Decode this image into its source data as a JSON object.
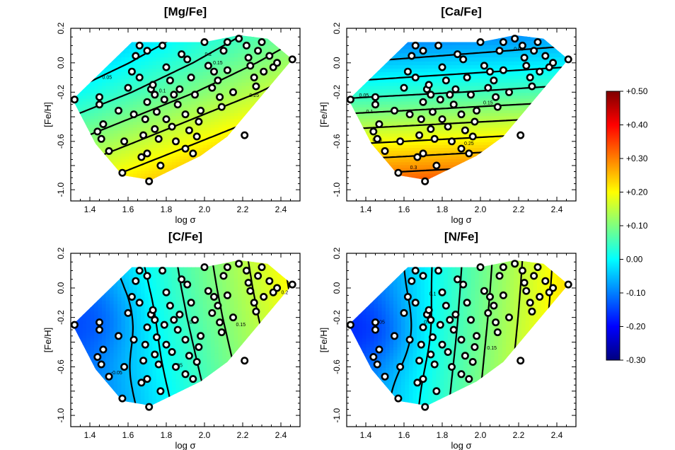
{
  "colorbar": {
    "ticks": [
      "+0.50",
      "+0.40",
      "+0.30",
      "+0.20",
      "+0.10",
      "0.00",
      "-0.10",
      "-0.20",
      "-0.30"
    ],
    "range": [
      -0.3,
      0.5
    ],
    "colors": [
      "#00007f",
      "#0000ff",
      "#007fff",
      "#00ffff",
      "#7fff7f",
      "#ffff00",
      "#ff7f00",
      "#ff0000",
      "#7f0000"
    ]
  },
  "chart_data": [
    {
      "type": "contour",
      "title": "[Mg/Fe]",
      "xlabel": "log σ",
      "ylabel": "[Fe/H]",
      "xlim": [
        1.3,
        2.5
      ],
      "ylim": [
        -1.0,
        0.2
      ],
      "xticks": [
        "1.4",
        "1.6",
        "1.8",
        "2.0",
        "2.2",
        "2.4"
      ],
      "yticks": [
        "0.2",
        "0.0",
        "-0.2",
        "-0.6",
        "-1.0"
      ],
      "ytick_values": [
        0.2,
        0.0,
        -0.2,
        -0.6,
        -1.0
      ],
      "field": {
        "base": 0.14,
        "gx": 0.09,
        "gy": -0.12,
        "cx": 0.0,
        "cy": 0.0,
        "c2": 0.0
      },
      "contour_labels": [
        {
          "text": "0.05",
          "x": 1.49,
          "y": -0.11
        },
        {
          "text": "0.1",
          "x": 1.78,
          "y": -0.2
        },
        {
          "text": "0.15",
          "x": 2.07,
          "y": -0.01
        },
        {
          "text": "0.2",
          "x": 2.02,
          "y": 0.04
        },
        {
          "text": "0.25",
          "x": 2.26,
          "y": -0.24
        }
      ]
    },
    {
      "type": "contour",
      "title": "[Ca/Fe]",
      "xlabel": "log σ",
      "ylabel": "[Fe/H]",
      "xlim": [
        1.3,
        2.5
      ],
      "ylim": [
        -1.0,
        0.2
      ],
      "xticks": [
        "1.4",
        "1.6",
        "1.8",
        "2.0",
        "2.2",
        "2.4"
      ],
      "yticks": [
        "0.2",
        "0.0",
        "-0.2",
        "-0.6",
        "-1.0"
      ],
      "ytick_values": [
        0.2,
        0.0,
        -0.2,
        -0.6,
        -1.0
      ],
      "field": {
        "base": 0.13,
        "gx": 0.02,
        "gy": -0.2,
        "cx": 0.0,
        "cy": 0.0,
        "c2": 0.0
      },
      "contour_labels": [
        {
          "text": "0.05",
          "x": 1.39,
          "y": -0.24
        },
        {
          "text": "0.05",
          "x": 2.2,
          "y": 0.07
        },
        {
          "text": "0.1",
          "x": 1.42,
          "y": -0.37
        },
        {
          "text": "0.15",
          "x": 1.46,
          "y": -0.6
        },
        {
          "text": "0.15",
          "x": 2.04,
          "y": -0.3
        },
        {
          "text": "0.25",
          "x": 1.94,
          "y": -0.63
        },
        {
          "text": "0.3",
          "x": 1.65,
          "y": -0.83
        }
      ]
    },
    {
      "type": "contour",
      "title": "[C/Fe]",
      "xlabel": "log σ",
      "ylabel": "[Fe/H]",
      "xlim": [
        1.3,
        2.5
      ],
      "ylim": [
        -1.0,
        0.2
      ],
      "xticks": [
        "1.4",
        "1.6",
        "1.8",
        "2.0",
        "2.2",
        "2.4"
      ],
      "yticks": [
        "0.2",
        "0.0",
        "-0.2",
        "-0.6",
        "-1.0"
      ],
      "ytick_values": [
        0.2,
        0.0,
        -0.2,
        -0.6,
        -1.0
      ],
      "field": {
        "base": 0.04,
        "gx": 0.16,
        "gy": 0.02,
        "cx": 1.45,
        "cy": -0.2,
        "c2": 0.05
      },
      "contour_labels": [
        {
          "text": "-0.05",
          "x": 1.54,
          "y": -0.66
        },
        {
          "text": "0.05",
          "x": 1.86,
          "y": -0.6
        },
        {
          "text": "0.1",
          "x": 1.94,
          "y": -0.25
        },
        {
          "text": "0.15",
          "x": 2.19,
          "y": -0.27
        },
        {
          "text": "0.2",
          "x": 2.42,
          "y": -0.04
        }
      ]
    },
    {
      "type": "contour",
      "title": "[N/Fe]",
      "xlabel": "log σ",
      "ylabel": "[Fe/H]",
      "xlim": [
        1.3,
        2.5
      ],
      "ylim": [
        -1.0,
        0.2
      ],
      "xticks": [
        "1.4",
        "1.6",
        "1.8",
        "2.0",
        "2.2",
        "2.4"
      ],
      "yticks": [
        "0.2",
        "0.0",
        "-0.2",
        "-0.6",
        "-1.0"
      ],
      "ytick_values": [
        0.2,
        0.0,
        -0.2,
        -0.6,
        -1.0
      ],
      "field": {
        "base": 0.06,
        "gx": 0.19,
        "gy": -0.01,
        "cx": 1.45,
        "cy": -0.3,
        "c2": 0.06
      },
      "contour_labels": [
        {
          "text": "-0.05",
          "x": 1.47,
          "y": -0.25
        },
        {
          "text": "0.05",
          "x": 1.73,
          "y": -0.25
        },
        {
          "text": "0.1",
          "x": 1.75,
          "y": -0.05
        },
        {
          "text": "0.15",
          "x": 2.06,
          "y": -0.46
        }
      ]
    }
  ]
}
